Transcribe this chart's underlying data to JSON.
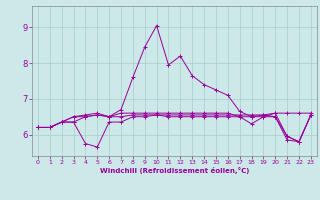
{
  "xlabel": "Windchill (Refroidissement éolien,°C)",
  "background_color": "#cce8e8",
  "grid_color": "#aacccc",
  "line_color": "#990099",
  "xlim": [
    -0.5,
    23.5
  ],
  "ylim": [
    5.4,
    9.6
  ],
  "yticks": [
    6,
    7,
    8,
    9
  ],
  "xticks": [
    0,
    1,
    2,
    3,
    4,
    5,
    6,
    7,
    8,
    9,
    10,
    11,
    12,
    13,
    14,
    15,
    16,
    17,
    18,
    19,
    20,
    21,
    22,
    23
  ],
  "series": [
    [
      6.2,
      6.2,
      6.35,
      6.35,
      6.5,
      6.55,
      6.5,
      6.5,
      6.55,
      6.55,
      6.55,
      6.55,
      6.55,
      6.55,
      6.55,
      6.55,
      6.55,
      6.55,
      6.55,
      6.55,
      6.6,
      6.6,
      6.6,
      6.6
    ],
    [
      6.2,
      6.2,
      6.35,
      6.35,
      5.75,
      5.65,
      6.35,
      6.35,
      6.5,
      6.5,
      6.55,
      6.5,
      6.5,
      6.5,
      6.5,
      6.5,
      6.5,
      6.5,
      6.5,
      6.5,
      6.5,
      5.85,
      5.8,
      6.55
    ],
    [
      6.2,
      6.2,
      6.35,
      6.5,
      6.5,
      6.55,
      6.5,
      6.7,
      7.6,
      8.45,
      9.05,
      7.95,
      8.2,
      7.65,
      7.4,
      7.25,
      7.1,
      6.65,
      6.5,
      6.55,
      6.5,
      5.95,
      5.8,
      6.55
    ],
    [
      6.2,
      6.2,
      6.35,
      6.5,
      6.55,
      6.6,
      6.5,
      6.6,
      6.6,
      6.6,
      6.6,
      6.6,
      6.6,
      6.6,
      6.6,
      6.6,
      6.6,
      6.5,
      6.3,
      6.5,
      6.6,
      5.95,
      5.8,
      6.55
    ]
  ]
}
